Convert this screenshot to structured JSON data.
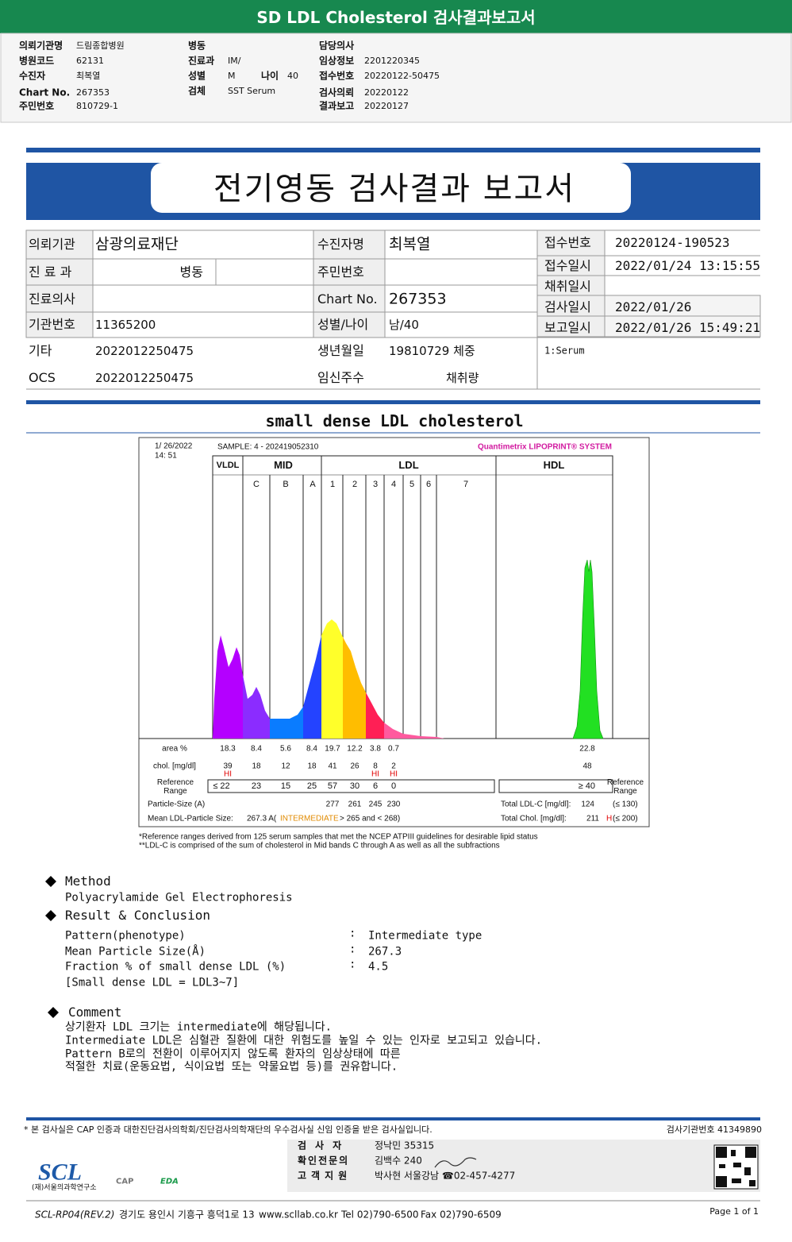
{
  "header": {
    "title": "SD LDL Cholesterol 검사결과보고서"
  },
  "request_info": {
    "columns": [
      [
        {
          "label": "의뢰기관명",
          "value": "드림종합병원"
        },
        {
          "label": "병원코드",
          "value": "62131"
        },
        {
          "label": "수진자",
          "value": "최복열"
        },
        {
          "label": "Chart No.",
          "value": "267353"
        },
        {
          "label": "주민번호",
          "value": "810729-1"
        }
      ],
      [
        {
          "label": "병동"
        },
        {
          "label": "진료과",
          "value": "IM/"
        },
        {
          "label": "성별",
          "value": "M"
        },
        {
          "label": "검체",
          "value": "SST Serum"
        }
      ],
      [
        {
          "label": "담당의사"
        },
        {
          "label": "임상정보",
          "value": "2201220345"
        },
        {
          "label": "접수번호",
          "value": "20220122-50475"
        },
        {
          "label": "검사의뢰",
          "value": "20220122"
        },
        {
          "label": "결과보고",
          "value": "20220127"
        }
      ]
    ],
    "age": {
      "label": "나이",
      "value": "40"
    }
  },
  "report": {
    "title": "전기영동 검사결과 보고서",
    "rows": [
      [
        {
          "label": "의뢰기관",
          "value": "삼광의료재단"
        },
        {
          "label": "수진자명",
          "value": "최복열"
        }
      ],
      [
        {
          "label": "진 료 과",
          "value": "병동"
        },
        {
          "label": "주민번호"
        }
      ],
      [
        {
          "label": "진료의사"
        },
        {
          "label": "Chart No.",
          "value": "267353"
        }
      ],
      [
        {
          "label": "기관번호",
          "value": "11365200"
        },
        {
          "label": "성별/나이",
          "value": "남/40"
        }
      ],
      [
        {
          "label": "기타",
          "value": "2022012250475"
        },
        {
          "label": "생년월일",
          "value": "19810729 체중"
        }
      ],
      [
        {
          "label": "OCS",
          "value": "2022012250475"
        },
        {
          "label": "임신주수",
          "value": "채취량"
        }
      ]
    ],
    "side": [
      {
        "label": "접수번호",
        "value": "20220124-190523"
      },
      {
        "label": "접수일시",
        "value": "2022/01/24 13:15:55"
      },
      {
        "label": "채취일시"
      },
      {
        "label": "검사일시",
        "value": "2022/01/26"
      },
      {
        "label": "보고일시",
        "value": "2022/01/26 15:49:21"
      }
    ],
    "note": "1:Serum"
  },
  "section_title": "small dense LDL cholesterol",
  "lipoprint": {
    "date": "1/ 26/2022",
    "time": "14: 51",
    "sample": "SAMPLE:   4 - 202419052310",
    "brand": "Quantimetrix LIPOPRINT® SYSTEM",
    "groups": [
      "VLDL",
      "MID",
      "LDL",
      "HDL"
    ],
    "bands": [
      "C",
      "B",
      "A",
      "1",
      "2",
      "3",
      "4",
      "5",
      "6",
      "7"
    ],
    "area_label": "area %",
    "area": [
      18.3,
      8.4,
      5.6,
      8.4,
      19.7,
      12.2,
      3.8,
      0.7
    ],
    "hdl_area": 22.8,
    "chol_label": "chol. [mg/dl]",
    "chol": [
      39,
      18,
      12,
      18,
      41,
      26,
      8,
      2
    ],
    "hdl_chol": 48,
    "flags": [
      "HI",
      null,
      null,
      null,
      null,
      null,
      "HI",
      "HI"
    ],
    "ref_label": "Reference Range",
    "ref": [
      "≤ 22",
      "23",
      "15",
      "25",
      "57",
      "30",
      "6",
      "0"
    ],
    "hdl_ref": "≥ 40",
    "ref_label_right": "Reference Range",
    "particle_label": "Particle-Size (A)",
    "particle": [
      277,
      261,
      245,
      230
    ],
    "mean_label": "Mean LDL-Particle Size:",
    "mean": "267.3 A(",
    "mean_class": "INTERMEDIATE",
    "mean_range": "> 265 and < 268)",
    "total_ldl_label": "Total LDL-C [mg/dl]:",
    "total_ldl": 124,
    "total_ldl_ref": "(≤ 130)",
    "total_chol_label": "Total Chol. [mg/dl]:",
    "total_chol": 211,
    "total_chol_flag": "H",
    "total_chol_ref": "(≤ 200)",
    "footnotes": [
      "*Reference ranges derived from 125 serum samples that met the NCEP ATPIII guidelines for desirable lipid status",
      "**LDL-C is comprised of the sum of cholesterol in Mid bands C through A as well as all the subfractions"
    ]
  },
  "method": {
    "heading": "Method",
    "text": "Polyacrylamide Gel Electrophoresis"
  },
  "result": {
    "heading": "Result & Conclusion",
    "separator": ":",
    "items": [
      {
        "label": "Pattern(phenotype)",
        "value": "Intermediate type"
      },
      {
        "label": "Mean Particle Size(Å)",
        "value": "267.3"
      },
      {
        "label": "Fraction % of small dense LDL (%)",
        "value": "4.5"
      }
    ],
    "note": "[Small dense LDL = LDL3~7]"
  },
  "comment": {
    "heading": "Comment",
    "lines": [
      "상기환자 LDL 크기는 intermediate에 해당됩니다.",
      "Intermediate LDL은 심혈관 질환에 대한 위험도를 높일 수 있는 인자로 보고되고 있습니다.",
      "Pattern B로의 전환이 이루어지지 않도록 환자의 임상상태에 따른",
      "적절한 치료(운동요법, 식이요법 또는 약물요법 등)를 권유합니다."
    ]
  },
  "footer": {
    "notice": "* 본 검사실은 CAP 인증과 대한진단검사의학회/진단검사의학재단의 우수검사실 신임 인증을 받은 검사실입니다.",
    "institution_no": "검사기관번호 41349890",
    "staff": [
      {
        "label": "검사자",
        "value": "정낙민 35315"
      },
      {
        "label": "확인전문의",
        "value": "김백수 240"
      },
      {
        "label": "고객지원",
        "value": "박사현 서울강남 ☎02-457-4277"
      }
    ],
    "logo": "SCL",
    "logo_sub": "(재)서울의과학연구소",
    "badges": [
      "CAP",
      "EDA"
    ],
    "form": "SCL-RP04(REV.2)",
    "address": "경기도 용인시 기흥구 흥덕1로 13",
    "website": "www.scllab.co.kr",
    "tel": "Tel 02)790-6500",
    "fax": "Fax 02)790-6509",
    "page": "Page 1 of 1"
  }
}
